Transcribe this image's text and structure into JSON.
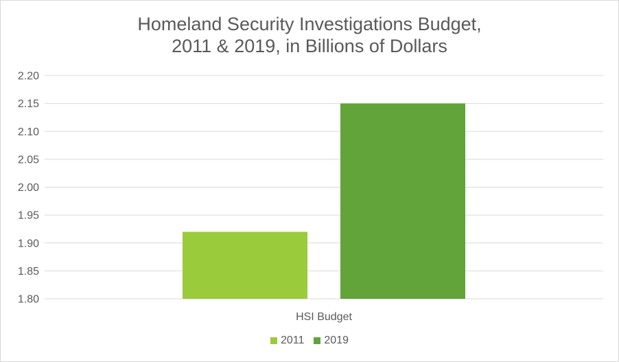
{
  "chart_data": {
    "type": "bar",
    "title": "Homeland Security Investigations Budget,",
    "subtitle": "2011 & 2019, in Billions of Dollars",
    "categories": [
      "HSI Budget"
    ],
    "series": [
      {
        "name": "2011",
        "values": [
          1.92
        ],
        "color": "#9acb3a"
      },
      {
        "name": "2019",
        "values": [
          2.15
        ],
        "color": "#62a43a"
      }
    ],
    "ylim": [
      1.8,
      2.2
    ],
    "yticks": [
      "1.80",
      "1.85",
      "1.90",
      "1.95",
      "2.00",
      "2.05",
      "2.10",
      "2.15",
      "2.20"
    ],
    "grid": true,
    "legend_position": "bottom",
    "colors": {
      "gridline": "#d9d9d9",
      "text": "#595959"
    }
  }
}
